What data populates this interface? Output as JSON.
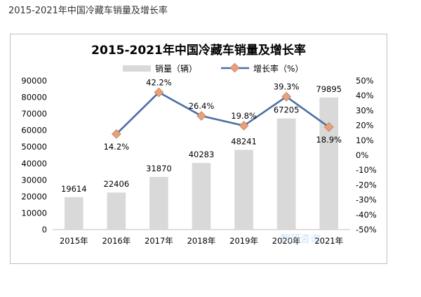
{
  "page_title": "2015-2021年中国冷藏车销量及增长率",
  "watermark_text": "智研咨询",
  "chart_data": {
    "type": "bar",
    "title": "2015-2021年中国冷藏车销量及增长率",
    "categories": [
      "2015年",
      "2016年",
      "2017年",
      "2018年",
      "2019年",
      "2020年",
      "2021年"
    ],
    "series": [
      {
        "name": "销量（辆）",
        "type": "bar",
        "axis": "left",
        "color": "#d9d9d9",
        "values": [
          19614,
          22406,
          31870,
          40283,
          48241,
          67205,
          79895
        ],
        "labels": [
          "19614",
          "22406",
          "31870",
          "40283",
          "48241",
          "67205",
          "79895"
        ]
      },
      {
        "name": "增长率（%）",
        "type": "line",
        "axis": "right",
        "color": "#4a6fa5",
        "marker_color": "#e8a07a",
        "values": [
          null,
          14.2,
          42.2,
          26.4,
          19.8,
          39.3,
          18.9
        ],
        "labels": [
          "",
          "14.2%",
          "42.2%",
          "26.4%",
          "19.8%",
          "39.3%",
          "18.9%"
        ]
      }
    ],
    "y_left": {
      "lim": [
        0,
        90000
      ],
      "ticks": [
        0,
        10000,
        20000,
        30000,
        40000,
        50000,
        60000,
        70000,
        80000,
        90000
      ],
      "tick_labels": [
        "0",
        "10000",
        "20000",
        "30000",
        "40000",
        "50000",
        "60000",
        "70000",
        "80000",
        "90000"
      ]
    },
    "y_right": {
      "lim": [
        -50,
        50
      ],
      "ticks": [
        -50,
        -40,
        -30,
        -20,
        -10,
        0,
        10,
        20,
        30,
        40,
        50
      ],
      "tick_labels": [
        "-50%",
        "-40%",
        "-30%",
        "-20%",
        "-10%",
        "0%",
        "10%",
        "20%",
        "30%",
        "40%",
        "50%"
      ]
    },
    "grid": false,
    "legend_position": "top"
  }
}
